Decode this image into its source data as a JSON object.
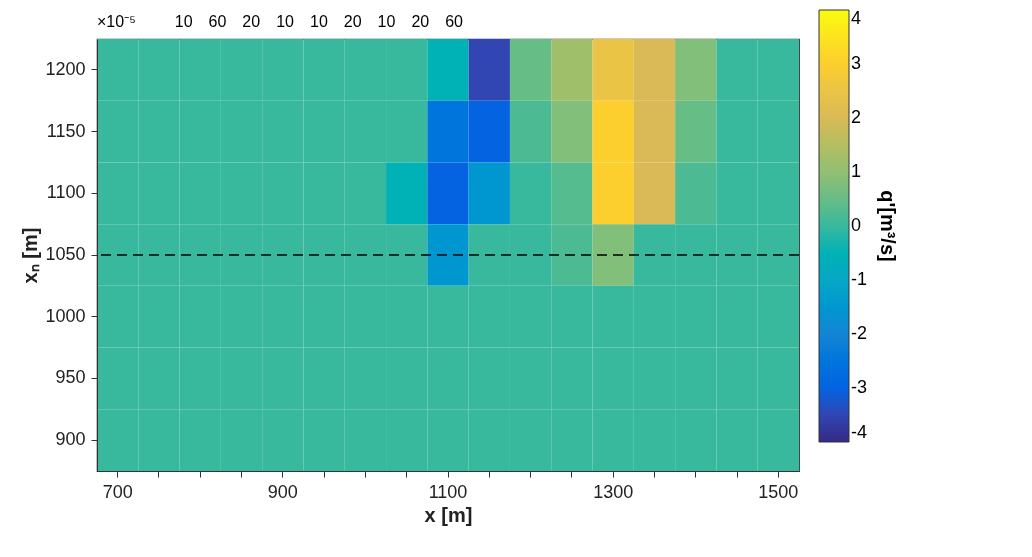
{
  "chart_data": {
    "type": "heatmap",
    "xlabel": "x [m]",
    "ylabel": "xₙ [m]",
    "clabel": "q'[m³/s]",
    "categories": [
      "700",
      null,
      null,
      null,
      "900",
      null,
      null,
      null,
      "1100",
      null,
      null,
      null,
      "1300",
      null,
      null,
      null,
      "1500"
    ],
    "y_categories": [
      "1200",
      "1150",
      "1100",
      "1050",
      "1000",
      "950",
      "900"
    ],
    "cells": [
      [
        0,
        0,
        0,
        0,
        0,
        0,
        0,
        0,
        -0.5,
        -3.5,
        0.5,
        1.2,
        2.5,
        2,
        0.8,
        0,
        0
      ],
      [
        0,
        0,
        0,
        0,
        0,
        0,
        0,
        0,
        -2.5,
        -3,
        0.2,
        0.8,
        3,
        2,
        0.5,
        0,
        0
      ],
      [
        0,
        0,
        0,
        0,
        0,
        0,
        0,
        -0.5,
        -3,
        -1.5,
        0,
        0.3,
        3,
        2,
        0.2,
        0,
        0
      ],
      [
        0,
        0,
        0,
        0,
        0,
        0,
        0,
        0,
        -1.5,
        0,
        0,
        0.2,
        0.8,
        0,
        0,
        0,
        0
      ],
      [
        0,
        0,
        0,
        0,
        0,
        0,
        0,
        0,
        0,
        0,
        0,
        0,
        0,
        0,
        0,
        0,
        0
      ],
      [
        0,
        0,
        0,
        0,
        0,
        0,
        0,
        0,
        0,
        0,
        0,
        0,
        0,
        0,
        0,
        0,
        0
      ],
      [
        0,
        0,
        0,
        0,
        0,
        0,
        0,
        0,
        0,
        0,
        0,
        0,
        0,
        0,
        0,
        0,
        0
      ]
    ],
    "clim": [
      -4,
      4
    ],
    "cticks": [
      -4,
      -3,
      -2,
      -1,
      0,
      1,
      2,
      3,
      4
    ],
    "ref_lines": [
      {
        "axis": "y",
        "value": "1050",
        "line_style": "dashed",
        "color": "#000000"
      }
    ],
    "annotations": [
      "×10⁻⁵",
      "10",
      "60",
      "20",
      "10",
      "10",
      "20",
      "10",
      "20",
      "60"
    ]
  }
}
